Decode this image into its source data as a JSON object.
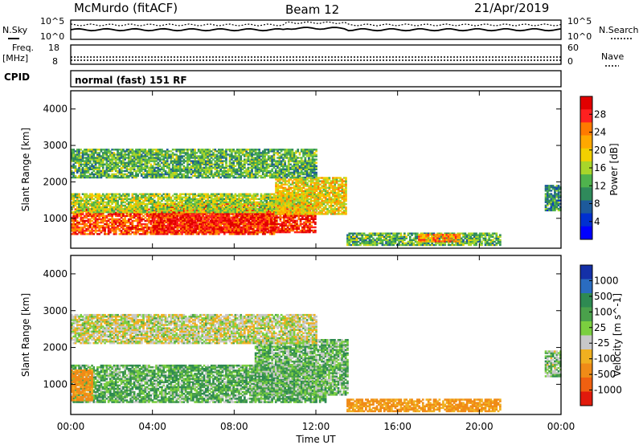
{
  "header": {
    "station": "McMurdo (fitACF)",
    "beam": "Beam 12",
    "date": "21/Apr/2019"
  },
  "strip": {
    "nsky_label": "N.Sky",
    "nsky_ticks": [
      "10^5",
      "10^0"
    ],
    "nsearch_label": "N.Search",
    "nsearch_ticks": [
      "10^5",
      "10^0"
    ],
    "freq_label_1": "Freq.",
    "freq_label_2": "[MHz]",
    "freq_ticks": [
      "18",
      "8"
    ],
    "nave_label": "Nave",
    "nave_ticks": [
      "60",
      "0"
    ],
    "cpid_label": "CPID",
    "cpid_value": "normal (fast) 151 RF"
  },
  "time_axis": {
    "xlabel": "Time UT",
    "ticks": [
      "00:00",
      "04:00",
      "08:00",
      "12:00",
      "16:00",
      "20:00",
      "00:00"
    ]
  },
  "power_colorbar": {
    "label": "Power [dB]",
    "ticks": [
      "28",
      "24",
      "20",
      "16",
      "12",
      "8",
      "4"
    ],
    "colors": [
      "#e10000",
      "#ff2020",
      "#ff7a00",
      "#ffa800",
      "#f2d000",
      "#a8d62a",
      "#4fb34d",
      "#2f8a5b",
      "#1d5a9b",
      "#0030d0",
      "#0000ff"
    ]
  },
  "velocity_colorbar": {
    "label": "Velocity [m s^-1]",
    "ticks": [
      "1000",
      "500",
      "100",
      "25",
      "-25",
      "-100",
      "-500",
      "-1000"
    ],
    "colors": [
      "#1430a8",
      "#2a6cc0",
      "#2e8a52",
      "#4aa14b",
      "#7bcf3f",
      "#c8c8c8",
      "#f0b020",
      "#f08b17",
      "#f06010",
      "#e11a0c"
    ]
  },
  "chart_data": [
    {
      "type": "heatmap",
      "title": "",
      "xlabel": "Time UT",
      "ylabel": "Slant Range [km]",
      "xlim": [
        0,
        24
      ],
      "ylim": [
        180,
        4500
      ],
      "yticks": [
        1000,
        2000,
        3000,
        4000
      ],
      "value_label": "Power [dB]",
      "value_range": [
        0,
        30
      ],
      "regions": [
        {
          "t": [
            0.0,
            10.0
          ],
          "r": [
            550,
            1250
          ],
          "value": 25
        },
        {
          "t": [
            4.0,
            12.0
          ],
          "r": [
            600,
            1400
          ],
          "value": 27
        },
        {
          "t": [
            0.0,
            11.5
          ],
          "r": [
            1150,
            1650
          ],
          "value": 15
        },
        {
          "t": [
            10.0,
            13.5
          ],
          "r": [
            1100,
            2100
          ],
          "value": 18
        },
        {
          "t": [
            0.0,
            12.0
          ],
          "r": [
            2100,
            2900
          ],
          "value": 12
        },
        {
          "t": [
            13.5,
            21.0
          ],
          "r": [
            250,
            600
          ],
          "value": 12
        },
        {
          "t": [
            17.0,
            19.0
          ],
          "r": [
            350,
            550
          ],
          "value": 22
        },
        {
          "t": [
            23.2,
            24.0
          ],
          "r": [
            1200,
            1900
          ],
          "value": 10
        }
      ]
    },
    {
      "type": "heatmap",
      "title": "",
      "xlabel": "Time UT",
      "ylabel": "Slant Range [km]",
      "xlim": [
        0,
        24
      ],
      "ylim": [
        180,
        4500
      ],
      "yticks": [
        1000,
        2000,
        3000,
        4000
      ],
      "value_label": "Velocity [m s^-1]",
      "value_range": [
        -1000,
        1000
      ],
      "regions": [
        {
          "t": [
            0.0,
            12.5
          ],
          "r": [
            500,
            1500
          ],
          "value": 75
        },
        {
          "t": [
            0.0,
            1.0
          ],
          "r": [
            550,
            1400
          ],
          "value": -150
        },
        {
          "t": [
            9.0,
            13.5
          ],
          "r": [
            700,
            2200
          ],
          "value": 60
        },
        {
          "t": [
            0.0,
            12.0
          ],
          "r": [
            2100,
            2900
          ],
          "value": 0
        },
        {
          "t": [
            13.5,
            21.0
          ],
          "r": [
            250,
            600
          ],
          "value": -120
        },
        {
          "t": [
            23.2,
            24.0
          ],
          "r": [
            1200,
            1900
          ],
          "value": 40
        }
      ]
    }
  ]
}
